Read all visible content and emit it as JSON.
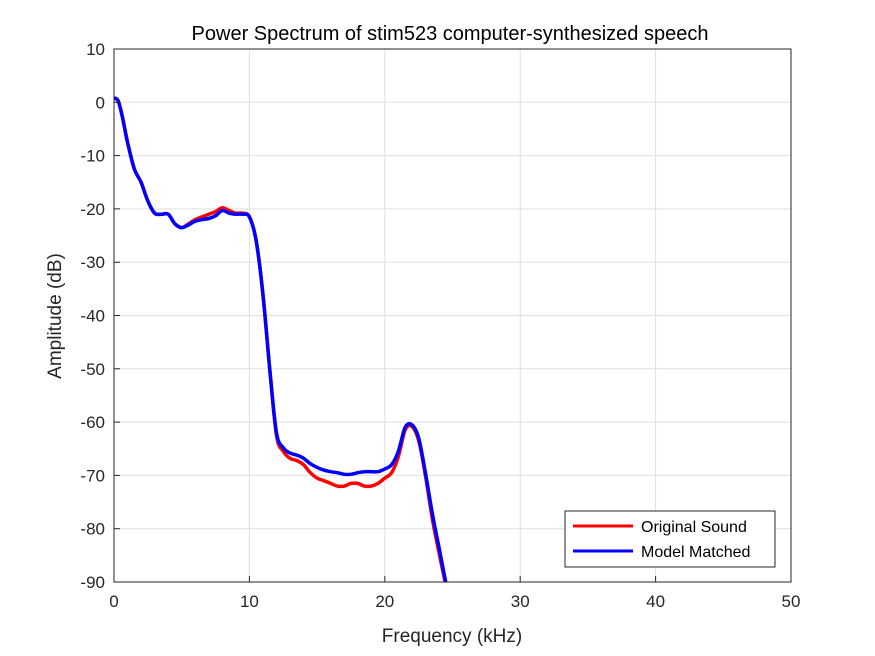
{
  "chart_data": {
    "type": "line",
    "title": "Power Spectrum of stim523 computer-synthesized speech",
    "xlabel": "Frequency (kHz)",
    "ylabel": "Amplitude (dB)",
    "xlim": [
      0,
      50
    ],
    "ylim": [
      -90,
      10
    ],
    "xticks": [
      0,
      10,
      20,
      30,
      40,
      50
    ],
    "yticks": [
      10,
      0,
      -10,
      -20,
      -30,
      -40,
      -50,
      -60,
      -70,
      -80,
      -90
    ],
    "grid": true,
    "legend_position": "bottom-right",
    "series": [
      {
        "name": "Original Sound",
        "color": "#ff0000",
        "x": [
          0,
          0.3,
          0.6,
          1.0,
          1.5,
          2.0,
          2.5,
          3.0,
          3.5,
          4.0,
          4.5,
          5.0,
          5.5,
          6.0,
          6.5,
          7.0,
          7.5,
          8.0,
          8.5,
          9.0,
          9.5,
          10.0,
          10.5,
          11.0,
          11.5,
          12.0,
          12.5,
          13.0,
          13.5,
          14.0,
          14.5,
          15.0,
          15.5,
          16.0,
          16.5,
          17.0,
          17.5,
          18.0,
          18.5,
          19.0,
          19.5,
          20.0,
          20.5,
          21.0,
          21.5,
          22.0,
          22.5,
          23.0,
          23.5,
          24.0,
          24.5
        ],
        "y": [
          0.8,
          0.3,
          -2.5,
          -7.5,
          -12.5,
          -15.0,
          -18.5,
          -20.8,
          -21.0,
          -21.0,
          -22.8,
          -23.5,
          -22.8,
          -22.0,
          -21.5,
          -21.0,
          -20.5,
          -19.8,
          -20.3,
          -20.8,
          -20.8,
          -21.5,
          -26.0,
          -36.0,
          -50.0,
          -62.5,
          -65.5,
          -66.8,
          -67.2,
          -68.0,
          -69.5,
          -70.5,
          -71.0,
          -71.5,
          -72.0,
          -72.0,
          -71.5,
          -71.5,
          -72.0,
          -72.0,
          -71.5,
          -70.5,
          -69.5,
          -66.5,
          -61.5,
          -60.8,
          -63.5,
          -70.0,
          -78.0,
          -84.5,
          -90.5
        ]
      },
      {
        "name": "Model Matched",
        "color": "#0000ff",
        "x": [
          0,
          0.3,
          0.6,
          1.0,
          1.5,
          2.0,
          2.5,
          3.0,
          3.5,
          4.0,
          4.5,
          5.0,
          5.5,
          6.0,
          6.5,
          7.0,
          7.5,
          8.0,
          8.5,
          9.0,
          9.5,
          10.0,
          10.5,
          11.0,
          11.5,
          12.0,
          12.5,
          13.0,
          13.5,
          14.0,
          14.5,
          15.0,
          15.5,
          16.0,
          16.5,
          17.0,
          17.5,
          18.0,
          18.5,
          19.0,
          19.5,
          20.0,
          20.5,
          21.0,
          21.5,
          22.0,
          22.5,
          23.0,
          23.5,
          24.0,
          24.5
        ],
        "y": [
          0.8,
          0.3,
          -2.5,
          -7.5,
          -12.5,
          -15.0,
          -18.5,
          -20.8,
          -21.0,
          -21.0,
          -22.8,
          -23.5,
          -23.0,
          -22.3,
          -22.0,
          -21.8,
          -21.3,
          -20.3,
          -20.8,
          -21.0,
          -21.0,
          -21.5,
          -26.0,
          -36.0,
          -50.0,
          -62.0,
          -64.8,
          -65.8,
          -66.2,
          -66.8,
          -67.8,
          -68.5,
          -69.0,
          -69.3,
          -69.5,
          -69.8,
          -69.8,
          -69.5,
          -69.3,
          -69.3,
          -69.3,
          -68.8,
          -68.0,
          -65.5,
          -61.0,
          -60.5,
          -63.0,
          -69.5,
          -77.0,
          -83.5,
          -90.0
        ]
      }
    ]
  }
}
